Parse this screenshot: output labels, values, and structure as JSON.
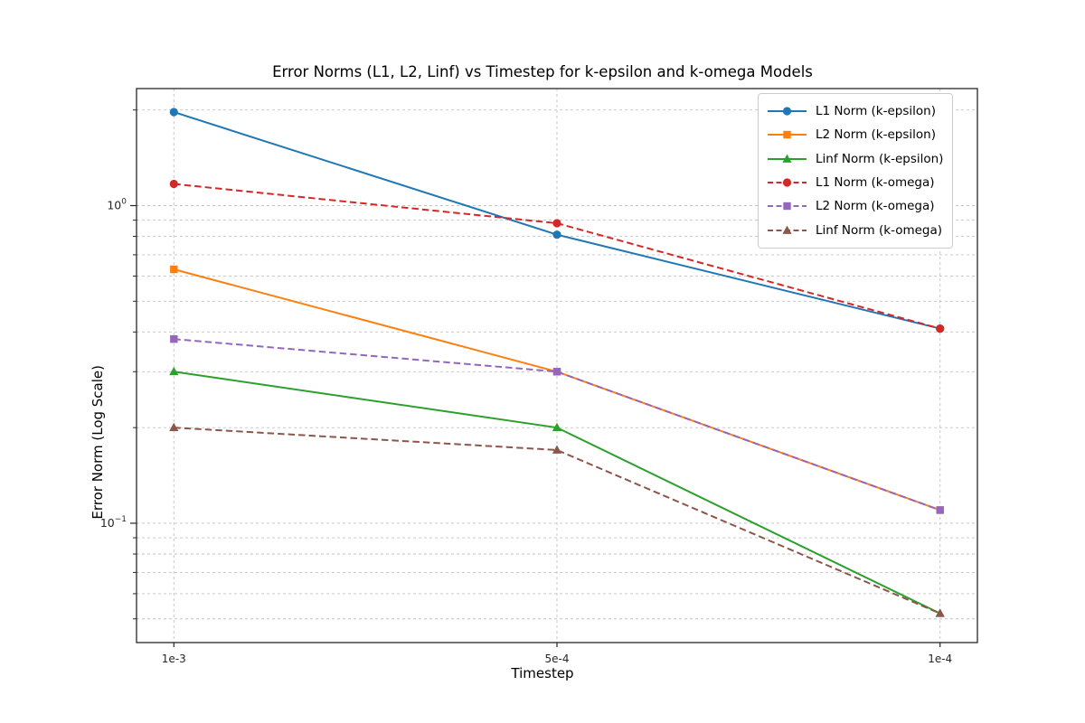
{
  "figure": {
    "background_color": "#ffffff",
    "frame_color": "#262626",
    "grid_color": "#c2c2c2",
    "tick_text_color": "#262626"
  },
  "chart": {
    "title": "Error Norms (L1, L2, Linf) vs Timestep for k-epsilon and k-omega Models",
    "xlabel": "Timestep",
    "ylabel": "Error Norm (Log Scale)",
    "y_major_tick_labels": [
      {
        "mantissa": "10",
        "exponent": "0",
        "value": 1
      },
      {
        "mantissa": "10",
        "exponent": "−1",
        "value": 0.1
      }
    ]
  },
  "chart_data": {
    "type": "line",
    "title": "Error Norms (L1, L2, Linf) vs Timestep for k-epsilon and k-omega Models",
    "xlabel": "Timestep",
    "ylabel": "Error Norm (Log Scale)",
    "x_scale": "categorical",
    "y_scale": "log",
    "categories": [
      "1e-3",
      "5e-4",
      "1e-4"
    ],
    "x_values": [
      0.001,
      0.0005,
      0.0001
    ],
    "ylim": [
      0.0421,
      2.336
    ],
    "y_major_ticks": [
      1,
      0.1
    ],
    "y_minor_ticks": [
      2,
      0.9,
      0.8,
      0.7,
      0.6,
      0.5,
      0.4,
      0.3,
      0.2,
      0.09,
      0.08,
      0.07,
      0.06,
      0.05
    ],
    "grid": true,
    "legend_position": "upper right",
    "series": [
      {
        "name": "L1 Norm (k-epsilon)",
        "norm": "L1",
        "model": "k-epsilon",
        "color": "#1f77b4",
        "linestyle": "solid",
        "marker": "circle",
        "values": [
          1.97,
          0.81,
          0.41
        ]
      },
      {
        "name": "L2 Norm (k-epsilon)",
        "norm": "L2",
        "model": "k-epsilon",
        "color": "#ff7f0e",
        "linestyle": "solid",
        "marker": "square",
        "values": [
          0.63,
          0.3,
          0.11
        ]
      },
      {
        "name": "Linf Norm (k-epsilon)",
        "norm": "Linf",
        "model": "k-epsilon",
        "color": "#2ca02c",
        "linestyle": "solid",
        "marker": "triangle",
        "values": [
          0.3,
          0.2,
          0.052
        ]
      },
      {
        "name": "L1 Norm (k-omega)",
        "norm": "L1",
        "model": "k-omega",
        "color": "#d62728",
        "linestyle": "dashed",
        "marker": "circle",
        "values": [
          1.17,
          0.88,
          0.41
        ]
      },
      {
        "name": "L2 Norm (k-omega)",
        "norm": "L2",
        "model": "k-omega",
        "color": "#9467bd",
        "linestyle": "dashed",
        "marker": "square",
        "values": [
          0.38,
          0.3,
          0.11
        ]
      },
      {
        "name": "Linf Norm (k-omega)",
        "norm": "Linf",
        "model": "k-omega",
        "color": "#8c564b",
        "linestyle": "dashed",
        "marker": "triangle",
        "values": [
          0.2,
          0.17,
          0.052
        ]
      }
    ]
  }
}
